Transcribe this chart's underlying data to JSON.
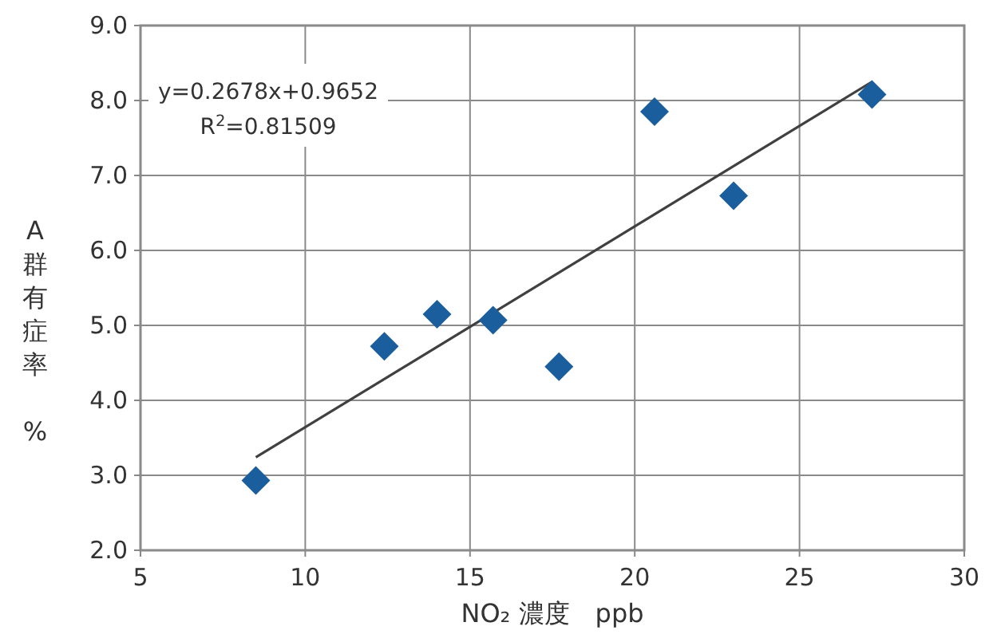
{
  "chart_data": {
    "type": "scatter",
    "xlabel": "NO₂ 濃度　ppb",
    "ylabel": "A群有症率 %",
    "annotations": [
      "y=0.2678x+0.9652",
      "R$^{2}$=0.81509"
    ],
    "series": [
      {
        "color": "#1b5e9e",
        "marker": "diamond",
        "x": [
          8.5,
          12.4,
          14.0,
          15.7,
          17.7,
          20.6,
          23.0,
          27.2
        ],
        "values": [
          2.93,
          4.72,
          5.15,
          5.07,
          4.45,
          7.85,
          6.73,
          8.08
        ]
      },
      {
        "type": "line",
        "color": "#404040",
        "x": [
          8.5,
          27.2
        ],
        "values": [
          3.24,
          8.25
        ]
      }
    ],
    "xlim": [
      5,
      30
    ],
    "xticks": [
      5,
      10,
      15,
      20,
      25,
      30
    ],
    "ylim": [
      2.0,
      9.0
    ],
    "yticks": [
      {
        "value": 2,
        "label": "2.0"
      },
      {
        "value": 3,
        "label": "3.0"
      },
      {
        "value": 4,
        "label": "4.0"
      },
      {
        "value": 5,
        "label": "5.0"
      },
      {
        "value": 6,
        "label": "6.0"
      },
      {
        "value": 7,
        "label": "7.0"
      },
      {
        "value": 8,
        "label": "8.0"
      },
      {
        "value": 9,
        "label": "9.0"
      }
    ],
    "grid": true
  }
}
